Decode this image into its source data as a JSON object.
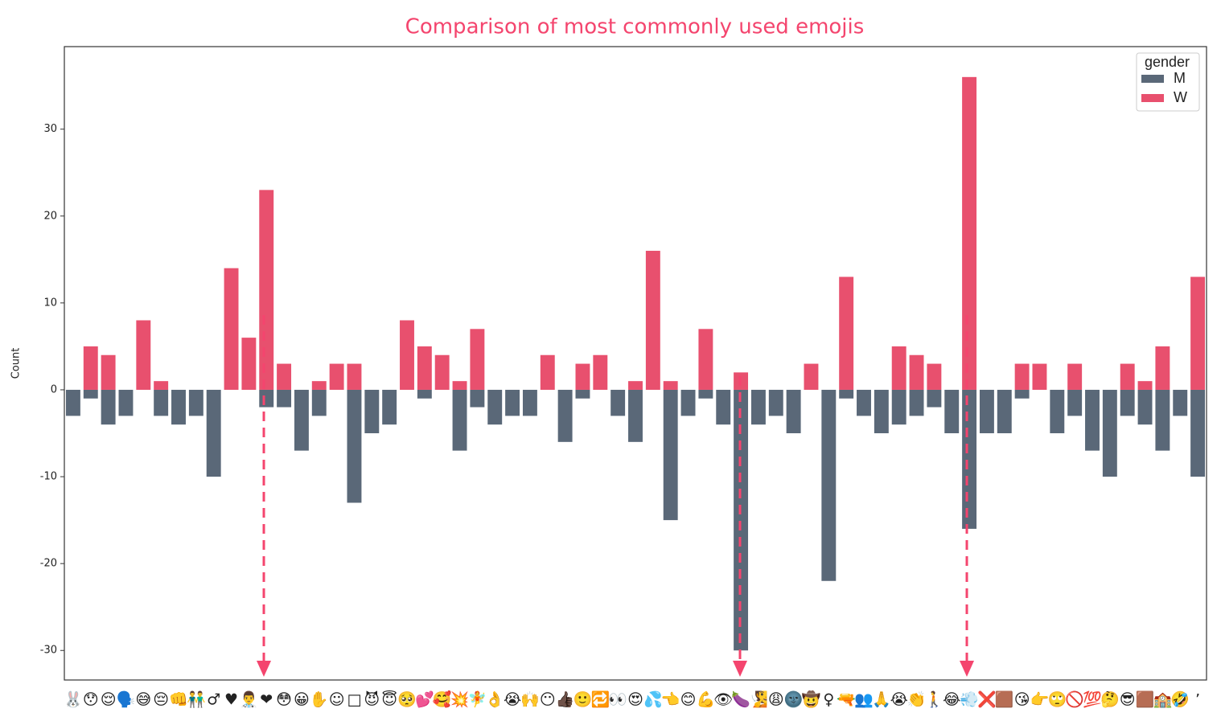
{
  "chart_data": {
    "type": "bar",
    "title": "Comparison of most commonly used emojis",
    "y_label": "Count",
    "legend_title": "gender",
    "legend_position": "upper right",
    "categories": [
      "🐰",
      "😯",
      "😌",
      "🗣️",
      "😅",
      "😔",
      "👊",
      "👬",
      "♂",
      "♥",
      "👨‍⚕️",
      "❤",
      "😳",
      "😀",
      "✋",
      "☺",
      "□",
      "😈",
      "😇",
      "🥺",
      "💕",
      "🥰",
      "💥",
      "🧚",
      "👌",
      "😭",
      "🙌",
      "😶",
      "👍🏿",
      "🙂",
      "🔁",
      "👀",
      "😍",
      "💦",
      "👈",
      "😊",
      "💪",
      "👁",
      "🍆",
      "🧏",
      "😩",
      "🌚",
      "🤠",
      "♀",
      "🔫",
      "👥",
      "🙏",
      "😭",
      "👏",
      "🚶",
      "😂",
      "💨",
      "❌",
      "🟫",
      "😘",
      "👉",
      "🙄",
      "🚫",
      "💯",
      "🤔",
      "😎",
      "🟫",
      "🏫",
      "🤣",
      "’"
    ],
    "series": [
      {
        "name": "M",
        "color": "#5a6878",
        "values": [
          -3,
          -1,
          -4,
          -3,
          0,
          -3,
          -4,
          -3,
          -10,
          0,
          0,
          -2,
          -2,
          -7,
          -3,
          0,
          -13,
          -5,
          -4,
          0,
          -1,
          0,
          -7,
          -2,
          -4,
          -3,
          -3,
          0,
          -6,
          -1,
          0,
          -3,
          -6,
          0,
          -15,
          -3,
          -1,
          -4,
          -30,
          -4,
          -3,
          -5,
          0,
          -22,
          -1,
          -3,
          -5,
          -4,
          -3,
          -2,
          -5,
          -16,
          -5,
          -5,
          -1,
          0,
          -5,
          -3,
          -7,
          -10,
          -3,
          -4,
          -7,
          -3,
          -10
        ]
      },
      {
        "name": "W",
        "color": "#e8506e",
        "values": [
          0,
          5,
          4,
          0,
          8,
          1,
          0,
          0,
          0,
          14,
          6,
          23,
          3,
          0,
          1,
          3,
          3,
          0,
          0,
          8,
          5,
          4,
          1,
          7,
          0,
          0,
          0,
          4,
          0,
          3,
          4,
          0,
          1,
          16,
          1,
          0,
          7,
          0,
          2,
          0,
          0,
          0,
          3,
          0,
          13,
          0,
          0,
          5,
          4,
          3,
          0,
          36,
          0,
          0,
          3,
          3,
          0,
          3,
          0,
          0,
          3,
          1,
          5,
          0,
          13
        ]
      }
    ],
    "ylim": [
      -33.4,
      39.5
    ],
    "yticks": [
      -30,
      -20,
      -10,
      0,
      10,
      20,
      30
    ],
    "grid": false
  }
}
